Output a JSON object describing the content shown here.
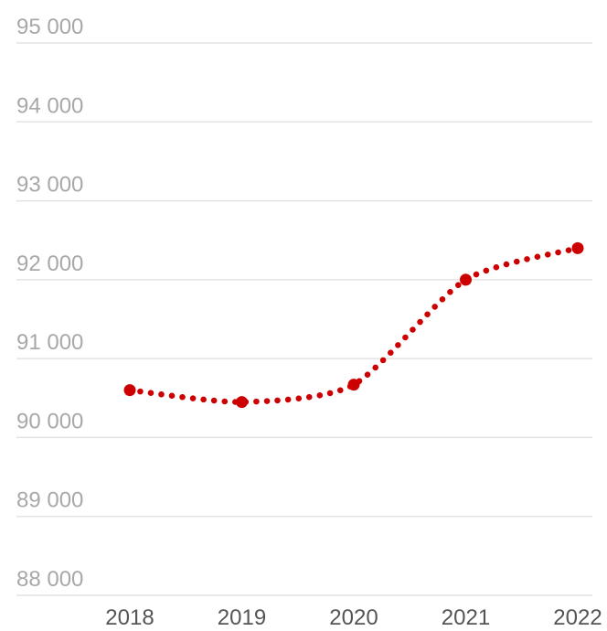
{
  "chart_data": {
    "type": "line",
    "title": "",
    "xlabel": "",
    "ylabel": "",
    "categories": [
      "2018",
      "2019",
      "2020",
      "2021",
      "2022"
    ],
    "series": [
      {
        "values": [
          90600,
          90450,
          90670,
          92000,
          92400
        ],
        "color": "#cc0000",
        "line_style": "dotted",
        "markers": true
      }
    ],
    "y_ticks": [
      88000,
      89000,
      90000,
      91000,
      92000,
      93000,
      94000,
      95000
    ],
    "y_tick_labels": [
      "88 000",
      "89 000",
      "90 000",
      "91 000",
      "92 000",
      "93 000",
      "94 000",
      "95 000"
    ],
    "ylim": [
      88000,
      95000
    ],
    "grid": true,
    "legend": "none",
    "colors": {
      "gridline": "#e3e3e3",
      "y_tick_text": "#a8a8a8",
      "x_tick_text": "#555555"
    }
  }
}
